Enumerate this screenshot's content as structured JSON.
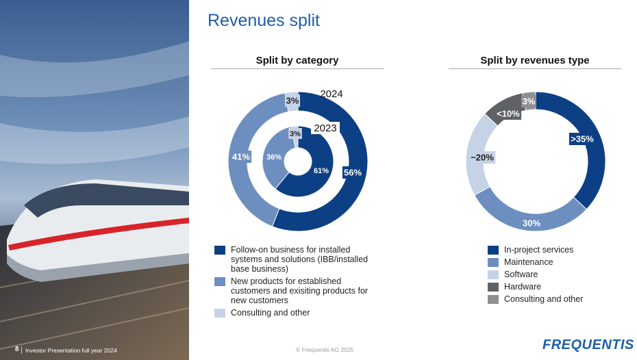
{
  "page": {
    "title": "Revenues split",
    "slide_number": "8",
    "footer_text": "Investor Presentation full year 2024",
    "copyright": "© Frequentis AG 2025",
    "logo": "FREQUENTIS"
  },
  "colors": {
    "dark": "#0d3f84",
    "mid": "#6d8fc0",
    "light": "#c6d2e6",
    "dark_gray": "#5e6166",
    "gray": "#8d8f93",
    "title": "#1f5ea8"
  },
  "chart_data": [
    {
      "type": "pie",
      "variant": "nested-donut",
      "title": "Split by category",
      "legend": [
        {
          "label": "Follow-on business for installed systems and solutions (IBB/installed base business)",
          "color": "#0d3f84"
        },
        {
          "label": "New products for established customers and exisiting products for new customers",
          "color": "#6d8fc0"
        },
        {
          "label": "Consulting and other",
          "color": "#c6d2e6"
        }
      ],
      "series": [
        {
          "name": "2024",
          "values": [
            56,
            41,
            3
          ],
          "labels": [
            "56%",
            "41%",
            "3%"
          ]
        },
        {
          "name": "2023",
          "values": [
            61,
            36,
            3
          ],
          "labels": [
            "61%",
            "36%",
            "3%"
          ]
        }
      ]
    },
    {
      "type": "pie",
      "variant": "donut",
      "title": "Split by revenues type",
      "categories": [
        "In-project services",
        "Maintenance",
        "Software",
        "Hardware",
        "Consulting and other"
      ],
      "values": [
        37,
        30,
        20,
        10,
        3
      ],
      "labels": [
        ">35%",
        "30%",
        "~20%",
        "<10%",
        "3%"
      ],
      "colors": [
        "#0d3f84",
        "#6d8fc0",
        "#c6d2e6",
        "#5e6166",
        "#8d8f93"
      ]
    }
  ]
}
